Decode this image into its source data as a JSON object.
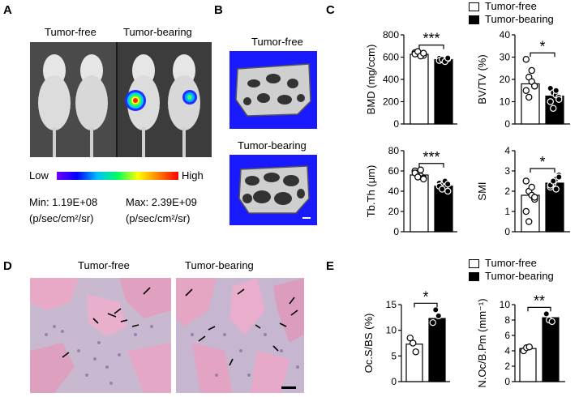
{
  "panels": {
    "A": {
      "label": "A",
      "group_left": "Tumor-free",
      "group_right": "Tumor-bearing",
      "colorbar_low": "Low",
      "colorbar_high": "High",
      "min_text": "Min: 1.19E+08",
      "max_text": "Max: 2.39E+09",
      "unit_left": "(p/sec/cm²/sr)",
      "unit_right": "(p/sec/cm²/sr)"
    },
    "B": {
      "label": "B",
      "top_title": "Tumor-free",
      "bottom_title": "Tumor-bearing"
    },
    "C": {
      "label": "C"
    },
    "D": {
      "label": "D",
      "left_title": "Tumor-free",
      "right_title": "Tumor-bearing"
    },
    "E": {
      "label": "E"
    }
  },
  "legend": {
    "open_label": "Tumor-free",
    "filled_label": "Tumor-bearing"
  },
  "colors": {
    "open_bar": "#ffffff",
    "filled_bar": "#000000",
    "bone_bg": "#1a1aff",
    "stain_pink": "#d98fb0"
  },
  "chart_data": [
    {
      "id": "bmd",
      "type": "bar",
      "panel": "C",
      "categories": [
        "Tumor-free",
        "Tumor-bearing"
      ],
      "values": [
        625,
        578
      ],
      "points": [
        [
          640,
          632,
          620,
          615,
          628,
          650,
          610,
          635
        ],
        [
          590,
          575,
          565,
          585,
          570,
          580,
          560,
          592
        ]
      ],
      "ylabel": "BMD (mg/ccm)",
      "ylim": [
        0,
        800
      ],
      "yticks": [
        "0",
        "200",
        "400",
        "600",
        "800"
      ],
      "significance": "***"
    },
    {
      "id": "bvtv",
      "type": "bar",
      "panel": "C",
      "categories": [
        "Tumor-free",
        "Tumor-bearing"
      ],
      "values": [
        18,
        12.5
      ],
      "points": [
        [
          29,
          21,
          19,
          17,
          15,
          12,
          24,
          17
        ],
        [
          16,
          14,
          13,
          12,
          10,
          7,
          15,
          11
        ]
      ],
      "ylabel": "BV/TV (%)",
      "ylim": [
        0,
        40
      ],
      "yticks": [
        "0",
        "10",
        "20",
        "30",
        "40"
      ],
      "significance": "*"
    },
    {
      "id": "tbth",
      "type": "bar",
      "panel": "C",
      "categories": [
        "Tumor-free",
        "Tumor-bearing"
      ],
      "values": [
        56,
        45
      ],
      "points": [
        [
          60,
          57,
          55,
          53,
          58,
          54,
          61,
          52
        ],
        [
          48,
          46,
          44,
          40,
          45,
          42,
          50,
          47
        ]
      ],
      "ylabel": "Tb.Th (μm)",
      "ylim": [
        0,
        80
      ],
      "yticks": [
        "0",
        "20",
        "40",
        "60",
        "80"
      ],
      "significance": "***"
    },
    {
      "id": "smi",
      "type": "bar",
      "panel": "C",
      "categories": [
        "Tumor-free",
        "Tumor-bearing"
      ],
      "values": [
        1.8,
        2.4
      ],
      "points": [
        [
          2.5,
          2.0,
          1.8,
          1.6,
          1.0,
          0.5,
          2.2,
          1.7
        ],
        [
          2.2,
          2.4,
          2.6,
          2.8,
          2.3,
          2.5,
          2.1,
          2.7
        ]
      ],
      "ylabel": "SMI",
      "ylim": [
        0,
        4
      ],
      "yticks": [
        "0",
        "1",
        "2",
        "3",
        "4"
      ],
      "significance": "*"
    },
    {
      "id": "ocsbs",
      "type": "bar",
      "panel": "E",
      "categories": [
        "Tumor-free",
        "Tumor-bearing"
      ],
      "values": [
        7.3,
        12.3
      ],
      "points": [
        [
          8.5,
          7.5,
          5.8
        ],
        [
          11.5,
          14.0,
          12.8
        ]
      ],
      "ylabel": "Oc.S/BS (%)",
      "ylim": [
        0,
        15
      ],
      "yticks": [
        "0",
        "5",
        "10",
        "15"
      ],
      "significance": "*"
    },
    {
      "id": "nocbpm",
      "type": "bar",
      "panel": "E",
      "categories": [
        "Tumor-free",
        "Tumor-bearing"
      ],
      "values": [
        4.3,
        8.3
      ],
      "points": [
        [
          4.0,
          4.4,
          4.5
        ],
        [
          8.8,
          8.0,
          7.8
        ]
      ],
      "ylabel": "N.Oc/B.Pm (mm⁻¹)",
      "ylim": [
        0,
        10
      ],
      "yticks": [
        "0",
        "2",
        "4",
        "6",
        "8",
        "10"
      ],
      "significance": "**"
    }
  ]
}
